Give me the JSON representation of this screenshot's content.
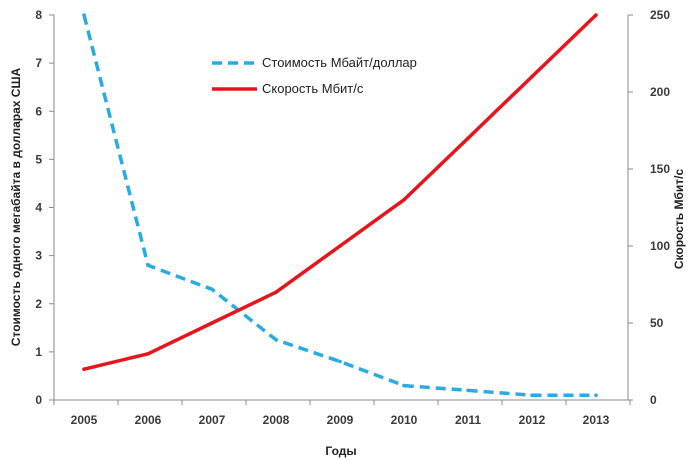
{
  "chart_data": {
    "type": "line",
    "title": "",
    "xlabel": "Годы",
    "ylabel_left": "Стоимость одного мегабайта в долларах США",
    "ylabel_right": "Скорость Мбит/с",
    "categories": [
      "2005",
      "2006",
      "2007",
      "2008",
      "2009",
      "2010",
      "2011",
      "2012",
      "2013"
    ],
    "ylim_left": [
      0,
      8
    ],
    "yticks_left": [
      0,
      1,
      2,
      3,
      4,
      5,
      6,
      7,
      8
    ],
    "ylim_right": [
      0,
      250
    ],
    "yticks_right": [
      0,
      50,
      100,
      150,
      200,
      250
    ],
    "grid": false,
    "legend_position": "top-center",
    "series": [
      {
        "name": "Стоимость Мбайт/доллар",
        "axis": "left",
        "style": "dashed",
        "color": "#29aae1",
        "values": [
          8.0,
          2.8,
          2.3,
          1.25,
          0.8,
          0.3,
          0.2,
          0.1,
          0.1
        ]
      },
      {
        "name": "Скорость Мбит/с",
        "axis": "right",
        "style": "solid",
        "color": "#e8141c",
        "values": [
          20,
          30,
          50,
          70,
          100,
          130,
          170,
          210,
          250
        ]
      }
    ]
  }
}
